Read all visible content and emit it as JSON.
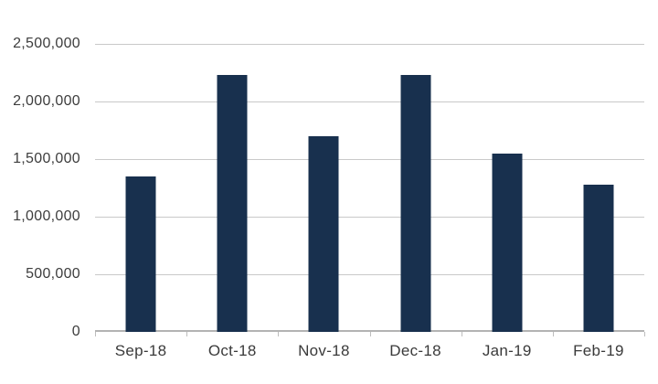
{
  "chart_data": {
    "type": "bar",
    "title": "",
    "xlabel": "",
    "ylabel": "",
    "categories": [
      "Sep-18",
      "Oct-18",
      "Nov-18",
      "Dec-18",
      "Jan-19",
      "Feb-19"
    ],
    "values": [
      1350000,
      2230000,
      1700000,
      2230000,
      1550000,
      1280000
    ],
    "ylim": [
      0,
      2500000
    ],
    "ytick_interval": 500000,
    "yticks": [
      {
        "value": 0,
        "label": "0"
      },
      {
        "value": 500000,
        "label": "500,000"
      },
      {
        "value": 1000000,
        "label": "1,000,000"
      },
      {
        "value": 1500000,
        "label": "1,500,000"
      },
      {
        "value": 2000000,
        "label": "2,000,000"
      },
      {
        "value": 2500000,
        "label": "2,500,000"
      }
    ],
    "grid": true,
    "legend": false,
    "colors": {
      "bar": "#18304e",
      "gridline": "#c9c9c9",
      "axis_line": "#b3b3b3",
      "tick": "#bdbdbd",
      "label_text": "#3d3d3d",
      "background": "#ffffff"
    }
  }
}
